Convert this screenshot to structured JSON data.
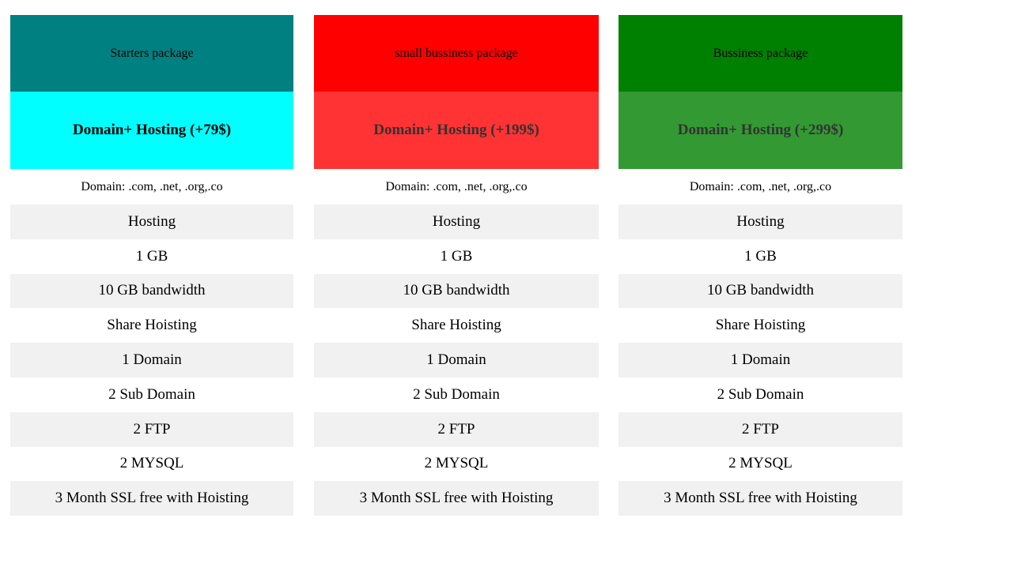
{
  "packages": [
    {
      "title": "Starters package",
      "price": "Domain+ Hosting (+79$)",
      "domains": "Domain: .com, .net, .org,.co",
      "header_color": "#008080",
      "price_color": "#00ffff",
      "price_text_color": "#000000",
      "features": [
        "Hosting",
        "1 GB",
        "10 GB bandwidth",
        "Share Hoisting",
        "1 Domain",
        "2 Sub Domain",
        "2 FTP",
        "2 MYSQL",
        "3 Month SSL free with Hoisting"
      ]
    },
    {
      "title": "small bussiness package",
      "price": "Domain+ Hosting (+199$)",
      "domains": "Domain: .com, .net, .org,.co",
      "header_color": "#ff0000",
      "price_color": "#ff3333",
      "price_text_color": "#333333",
      "features": [
        "Hosting",
        "1 GB",
        "10 GB bandwidth",
        "Share Hoisting",
        "1 Domain",
        "2 Sub Domain",
        "2 FTP",
        "2 MYSQL",
        "3 Month SSL free with Hoisting"
      ]
    },
    {
      "title": "Bussiness package",
      "price": "Domain+ Hosting (+299$)",
      "domains": "Domain: .com, .net, .org,.co",
      "header_color": "#008000",
      "price_color": "#339933",
      "price_text_color": "#333333",
      "features": [
        "Hosting",
        "1 GB",
        "10 GB bandwidth",
        "Share Hoisting",
        "1 Domain",
        "2 Sub Domain",
        "2 FTP",
        "2 MYSQL",
        "3 Month SSL free with Hoisting"
      ]
    }
  ]
}
